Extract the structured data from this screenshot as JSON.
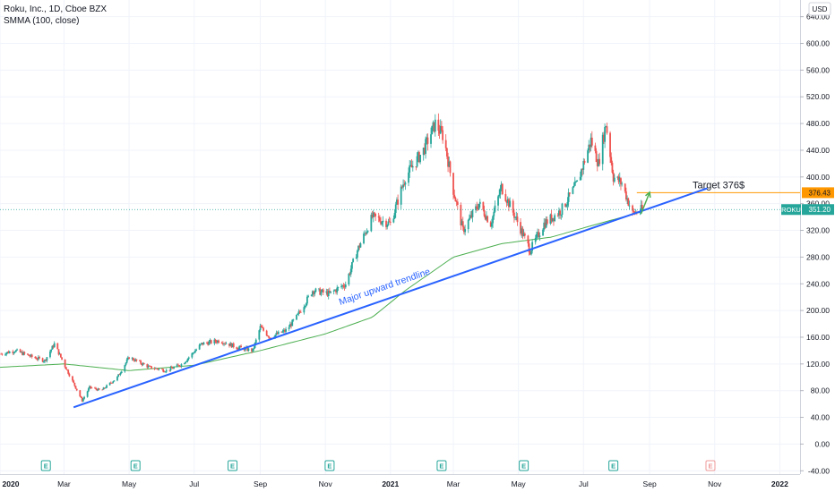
{
  "header": {
    "symbol_line": "Roku, Inc., 1D, Cboe BZX",
    "indicator_line": "SMMA (100, close)",
    "currency_badge": "USD"
  },
  "colors": {
    "up": "#26a69a",
    "down": "#ef5350",
    "smma": "#4caf50",
    "trendline": "#2962ff",
    "target_line": "#ff9800",
    "last_price_badge": "#26a69a",
    "grid": "#f0f3fa",
    "axis_text": "#131722"
  },
  "chart_data": {
    "type": "candlestick",
    "title": "Roku, Inc., 1D, Cboe BZX",
    "indicator": "SMMA (100, close)",
    "x_tick_labels": [
      "2020",
      "Mar",
      "May",
      "Jul",
      "Sep",
      "Nov",
      "2021",
      "Mar",
      "May",
      "Jul",
      "Sep",
      "Nov",
      "2022"
    ],
    "y_tick_labels": [
      "-40.00",
      "0.00",
      "40.00",
      "80.00",
      "120.00",
      "160.00",
      "200.00",
      "240.00",
      "280.00",
      "320.00",
      "360.00",
      "400.00",
      "440.00",
      "480.00",
      "520.00",
      "560.00",
      "600.00",
      "640.00"
    ],
    "y_ticks": [
      -40,
      0,
      40,
      80,
      120,
      160,
      200,
      240,
      280,
      320,
      360,
      400,
      440,
      480,
      520,
      560,
      600,
      640
    ],
    "ylim": [
      -45,
      665
    ],
    "x_range": [
      "2020-01-01",
      "2022-01-20"
    ],
    "price_path": [
      [
        "2020-01-02",
        135
      ],
      [
        "2020-01-15",
        140
      ],
      [
        "2020-02-01",
        130
      ],
      [
        "2020-02-12",
        125
      ],
      [
        "2020-02-21",
        150
      ],
      [
        "2020-03-01",
        120
      ],
      [
        "2020-03-18",
        65
      ],
      [
        "2020-03-25",
        85
      ],
      [
        "2020-04-05",
        80
      ],
      [
        "2020-04-20",
        100
      ],
      [
        "2020-05-01",
        130
      ],
      [
        "2020-05-20",
        115
      ],
      [
        "2020-06-05",
        110
      ],
      [
        "2020-06-20",
        120
      ],
      [
        "2020-07-08",
        150
      ],
      [
        "2020-07-25",
        155
      ],
      [
        "2020-08-10",
        145
      ],
      [
        "2020-08-25",
        140
      ],
      [
        "2020-09-01",
        175
      ],
      [
        "2020-09-10",
        160
      ],
      [
        "2020-09-25",
        170
      ],
      [
        "2020-10-05",
        190
      ],
      [
        "2020-10-20",
        230
      ],
      [
        "2020-11-05",
        225
      ],
      [
        "2020-11-20",
        240
      ],
      [
        "2020-12-01",
        290
      ],
      [
        "2020-12-15",
        340
      ],
      [
        "2021-01-01",
        330
      ],
      [
        "2021-01-15",
        400
      ],
      [
        "2021-02-01",
        440
      ],
      [
        "2021-02-12",
        480
      ],
      [
        "2021-02-20",
        460
      ],
      [
        "2021-03-01",
        380
      ],
      [
        "2021-03-10",
        320
      ],
      [
        "2021-03-25",
        360
      ],
      [
        "2021-04-05",
        330
      ],
      [
        "2021-04-15",
        385
      ],
      [
        "2021-04-28",
        340
      ],
      [
        "2021-05-12",
        290
      ],
      [
        "2021-05-25",
        330
      ],
      [
        "2021-06-10",
        350
      ],
      [
        "2021-06-25",
        390
      ],
      [
        "2021-07-08",
        455
      ],
      [
        "2021-07-15",
        420
      ],
      [
        "2021-07-22",
        480
      ],
      [
        "2021-07-29",
        400
      ],
      [
        "2021-08-06",
        390
      ],
      [
        "2021-08-16",
        345
      ],
      [
        "2021-08-25",
        351.2
      ]
    ],
    "last_close": 351.2,
    "target_price": 376.43,
    "smma_path": [
      [
        "2020-01-01",
        115
      ],
      [
        "2020-03-01",
        120
      ],
      [
        "2020-05-01",
        110
      ],
      [
        "2020-07-01",
        118
      ],
      [
        "2020-09-01",
        140
      ],
      [
        "2020-11-01",
        165
      ],
      [
        "2020-12-15",
        190
      ],
      [
        "2021-01-15",
        230
      ],
      [
        "2021-03-01",
        280
      ],
      [
        "2021-04-15",
        300
      ],
      [
        "2021-06-01",
        310
      ],
      [
        "2021-07-15",
        330
      ],
      [
        "2021-08-25",
        348
      ]
    ],
    "trendline": {
      "from": [
        "2020-03-10",
        55
      ],
      "to": [
        "2021-10-25",
        383
      ],
      "label": "Major upward trendline"
    },
    "target_arrow": {
      "from": [
        "2021-08-24",
        345
      ],
      "to": [
        "2021-09-01",
        377
      ]
    },
    "earnings_markers": [
      "2020-02-13",
      "2020-05-07",
      "2020-08-06",
      "2020-11-05",
      "2021-02-18",
      "2021-05-06",
      "2021-07-29"
    ],
    "future_earnings_markers": [
      "2021-10-28"
    ],
    "annotations": {
      "target_text": "Target 376$",
      "target_badge": "376.43",
      "last_symbol": "ROKU",
      "last_price": "351.20",
      "earnings_letter": "E"
    }
  }
}
